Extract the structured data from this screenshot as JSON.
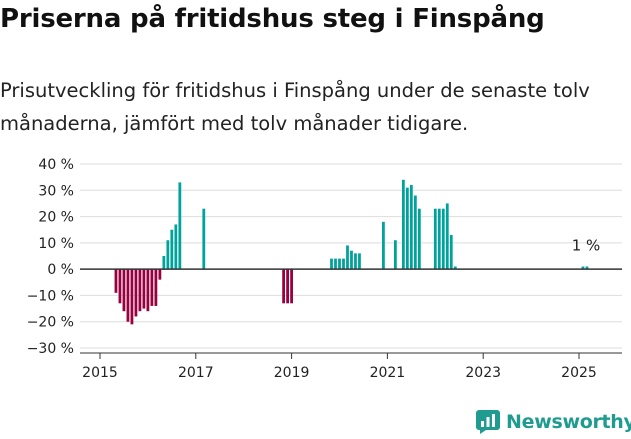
{
  "header": {
    "title": "Priserna på fritidshus steg i Finspång",
    "subtitle": "Prisutveckling för fritidshus i Finspång under de senaste tolv månaderna, jämfört med tolv månader tidigare."
  },
  "brand": {
    "name": "Newsworthy",
    "icon": "newsworthy-logo-icon",
    "color": "#1f9c8f"
  },
  "colors": {
    "positive": "#00a39b",
    "negative": "#99003f",
    "axis": "#333333",
    "grid": "#dddddd"
  },
  "chart_data": {
    "type": "bar",
    "title": "",
    "xlabel": "",
    "ylabel": "",
    "ylim": [
      -30,
      40
    ],
    "y_ticks": [
      40,
      30,
      20,
      10,
      0,
      -10,
      -20,
      -30
    ],
    "y_tick_labels": [
      "40 %",
      "30 %",
      "20 %",
      "10 %",
      "0 %",
      "−10 %",
      "−20 %",
      "−30 %"
    ],
    "x_ticks": [
      "2015",
      "2017",
      "2019",
      "2021",
      "2023",
      "2025"
    ],
    "x_range": [
      "2015-01",
      "2025-12"
    ],
    "annotation": {
      "text": "1 %",
      "date": "2025-02",
      "value": 1
    },
    "series": [
      {
        "values": [
          {
            "date": "2015-05",
            "value": -9
          },
          {
            "date": "2015-06",
            "value": -13
          },
          {
            "date": "2015-07",
            "value": -16
          },
          {
            "date": "2015-08",
            "value": -20
          },
          {
            "date": "2015-09",
            "value": -21
          },
          {
            "date": "2015-10",
            "value": -18
          },
          {
            "date": "2015-11",
            "value": -16
          },
          {
            "date": "2015-12",
            "value": -15
          },
          {
            "date": "2016-01",
            "value": -16
          },
          {
            "date": "2016-02",
            "value": -14
          },
          {
            "date": "2016-03",
            "value": -14
          },
          {
            "date": "2016-04",
            "value": -4
          },
          {
            "date": "2016-05",
            "value": 5
          },
          {
            "date": "2016-06",
            "value": 11
          },
          {
            "date": "2016-07",
            "value": 15
          },
          {
            "date": "2016-08",
            "value": 17
          },
          {
            "date": "2016-09",
            "value": 33
          },
          {
            "date": "2017-03",
            "value": 23
          },
          {
            "date": "2018-11",
            "value": -13
          },
          {
            "date": "2018-12",
            "value": -13
          },
          {
            "date": "2019-01",
            "value": -13
          },
          {
            "date": "2019-11",
            "value": 4
          },
          {
            "date": "2019-12",
            "value": 4
          },
          {
            "date": "2020-01",
            "value": 4
          },
          {
            "date": "2020-02",
            "value": 4
          },
          {
            "date": "2020-03",
            "value": 9
          },
          {
            "date": "2020-04",
            "value": 7
          },
          {
            "date": "2020-05",
            "value": 6
          },
          {
            "date": "2020-06",
            "value": 6
          },
          {
            "date": "2020-12",
            "value": 18
          },
          {
            "date": "2021-03",
            "value": 11
          },
          {
            "date": "2021-05",
            "value": 34
          },
          {
            "date": "2021-06",
            "value": 31
          },
          {
            "date": "2021-07",
            "value": 32
          },
          {
            "date": "2021-08",
            "value": 28
          },
          {
            "date": "2021-09",
            "value": 23
          },
          {
            "date": "2022-01",
            "value": 23
          },
          {
            "date": "2022-02",
            "value": 23
          },
          {
            "date": "2022-03",
            "value": 23
          },
          {
            "date": "2022-04",
            "value": 25
          },
          {
            "date": "2022-05",
            "value": 13
          },
          {
            "date": "2022-06",
            "value": 1
          },
          {
            "date": "2025-02",
            "value": 1
          },
          {
            "date": "2025-03",
            "value": 1
          }
        ]
      }
    ]
  }
}
